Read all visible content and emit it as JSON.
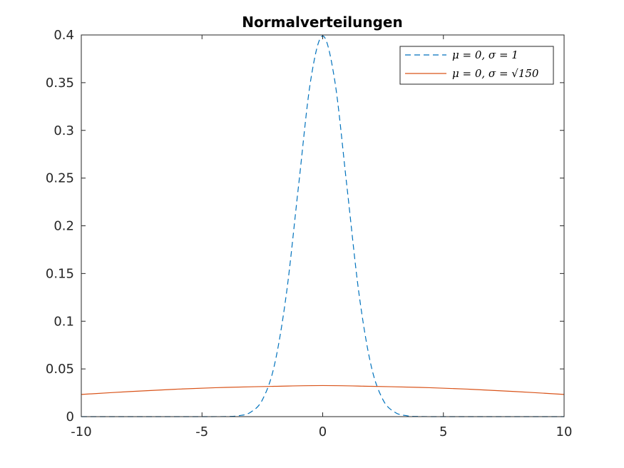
{
  "chart_data": {
    "type": "line",
    "title": "Normalverteilungen",
    "xlabel": "",
    "ylabel": "",
    "xlim": [
      -10,
      10
    ],
    "ylim": [
      0,
      0.4
    ],
    "x_ticks": [
      -10,
      -5,
      0,
      5,
      10
    ],
    "x_tick_labels": [
      "-10",
      "-5",
      "0",
      "5",
      "10"
    ],
    "y_ticks": [
      0,
      0.05,
      0.1,
      0.15,
      0.2,
      0.25,
      0.3,
      0.35,
      0.4
    ],
    "y_tick_labels": [
      "0",
      "0.05",
      "0.1",
      "0.15",
      "0.2",
      "0.25",
      "0.3",
      "0.35",
      "0.4"
    ],
    "grid": false,
    "legend_position": "top-right",
    "series": [
      {
        "name": "μ = 0, σ = 1",
        "color": "#0072BD",
        "line_style": "dashed",
        "x": [
          -10,
          -9,
          -8,
          -7,
          -6,
          -5,
          -4,
          -3.5,
          -3,
          -2.5,
          -2,
          -1.5,
          -1,
          -0.5,
          0,
          0.5,
          1,
          1.5,
          2,
          2.5,
          3,
          3.5,
          4,
          5,
          6,
          7,
          8,
          9,
          10
        ],
        "y": [
          0,
          0,
          0,
          0,
          0,
          1.5e-06,
          0.0001338,
          0.0008727,
          0.0044318,
          0.0175283,
          0.053991,
          0.1295176,
          0.2419707,
          0.3520653,
          0.3989423,
          0.3520653,
          0.2419707,
          0.1295176,
          0.053991,
          0.0175283,
          0.0044318,
          0.0008727,
          0.0001338,
          1.5e-06,
          0,
          0,
          0,
          0,
          0
        ]
      },
      {
        "name": "μ = 0, σ = √150",
        "color": "#D95319",
        "line_style": "solid",
        "x": [
          -10,
          -8,
          -6,
          -4,
          -2,
          0,
          2,
          4,
          6,
          8,
          10
        ],
        "y": [
          0.02327,
          0.02628,
          0.02883,
          0.03067,
          0.03175,
          0.03257,
          0.03175,
          0.03067,
          0.02883,
          0.02628,
          0.02327
        ]
      }
    ]
  }
}
